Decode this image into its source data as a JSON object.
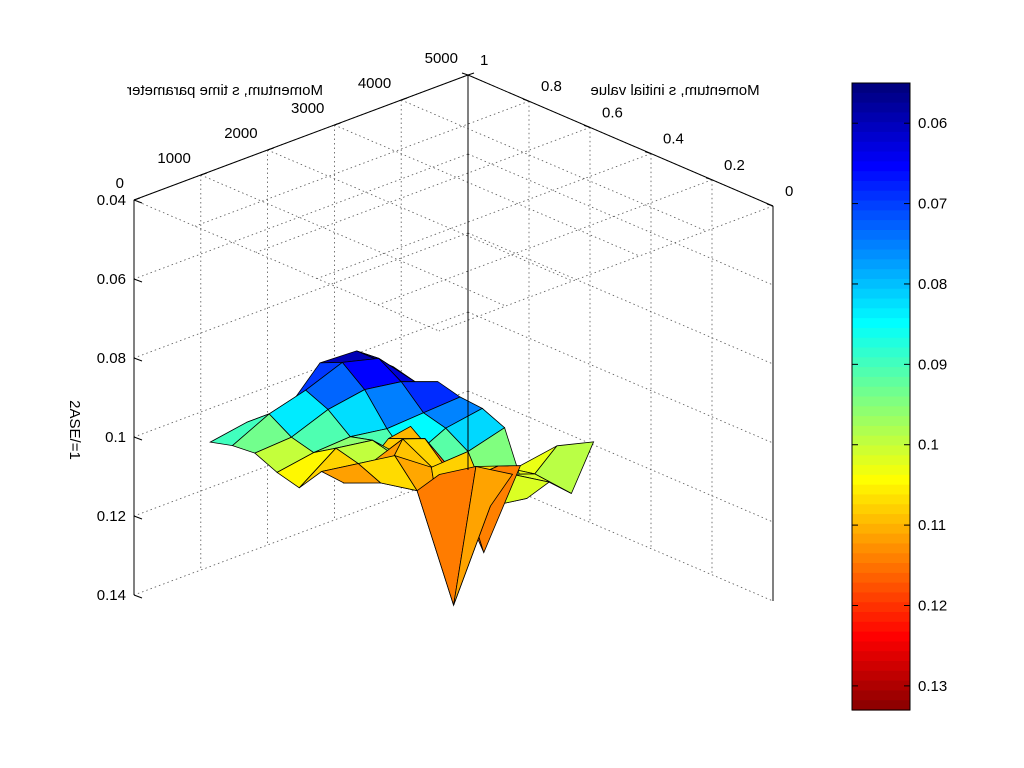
{
  "chart_data": {
    "type": "surface",
    "rendering": "mirrored (image shown horizontally flipped)",
    "x_axis": {
      "label": "Momentum, s time parameter",
      "ticks": [
        "0",
        "1000",
        "2000",
        "3000",
        "4000",
        "5000"
      ],
      "range": [
        0,
        5000
      ]
    },
    "y_axis": {
      "label": "Momentum, s initial value",
      "ticks": [
        "0",
        "0.2",
        "0.4",
        "0.6",
        "0.8",
        "1"
      ],
      "range": [
        0,
        1
      ]
    },
    "z_axis": {
      "label": "2ASE/=1",
      "ticks": [
        "0.04",
        "0.06",
        "0.08",
        "0.1",
        "0.12",
        "0.14"
      ],
      "range": [
        0.04,
        0.14
      ],
      "reversed": true
    },
    "colorbar": {
      "colormap": "jet",
      "ticks": [
        "0.06",
        "0.07",
        "0.08",
        "0.09",
        "0.1",
        "0.11",
        "0.12",
        "0.13"
      ],
      "range": [
        0.055,
        0.133
      ]
    },
    "grid": true,
    "surface_nodes": [
      [
        "0.093",
        "0.084",
        "0.078",
        "0.061",
        "0.054",
        "0.054"
      ],
      [
        "0.096",
        "0.084",
        "0.074",
        "0.063",
        "0.058",
        "0.06"
      ],
      [
        "0.1",
        "0.092",
        "0.081",
        "0.072",
        "0.066",
        "0.062"
      ],
      [
        "0.107",
        "0.098",
        "0.09",
        "0.084",
        "0.076",
        "0.068"
      ],
      [
        "0.113",
        "0.099",
        "0.093",
        "0.094",
        "0.082",
        "0.073"
      ],
      [
        "0.111",
        "0.105",
        "0.099",
        "0.098",
        "0.09",
        "0.08"
      ],
      [
        "0.116",
        "0.112",
        "0.11",
        "0.135",
        "0.106",
        "0.1"
      ],
      [
        "0.114",
        "0.103",
        "0.108",
        "0.102",
        "0.1",
        "0.098"
      ],
      [
        "0.109",
        "0.105",
        "0.112",
        "0.104",
        "0.102",
        "0.103"
      ],
      [
        "0.108",
        "0.115",
        "0.132",
        "0.106",
        "0.097",
        "0.092"
      ]
    ]
  }
}
